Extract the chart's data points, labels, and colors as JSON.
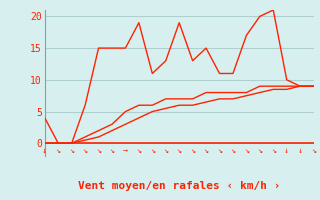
{
  "title": "",
  "xlabel": "Vent moyen/en rafales ‹ km/h ›",
  "bg_color": "#d7efef",
  "line_color": "#ff2200",
  "grid_color": "#b0d0d0",
  "axis_color": "#999999",
  "ylim": [
    0,
    21
  ],
  "yticks": [
    0,
    5,
    10,
    15,
    20
  ],
  "n_points": 21,
  "line1_y": [
    4,
    0,
    0,
    6,
    15,
    15,
    15,
    19,
    11,
    13,
    19,
    13,
    15,
    11,
    11,
    17,
    20,
    21,
    10,
    9,
    9
  ],
  "line2_y": [
    0,
    0,
    0,
    1,
    2,
    3,
    5,
    6,
    6,
    7,
    7,
    7,
    8,
    8,
    8,
    8,
    9,
    9,
    9,
    9,
    9
  ],
  "line3_y": [
    0,
    0,
    0,
    0.5,
    1,
    2,
    3,
    4,
    5,
    5.5,
    6,
    6,
    6.5,
    7,
    7,
    7.5,
    8,
    8.5,
    8.5,
    9,
    9
  ],
  "wind_dirs": [
    "↓",
    "↘",
    "↘",
    "↘",
    "↘",
    "↘",
    "→",
    "↘",
    "↘",
    "↘",
    "↘",
    "↘",
    "↘",
    "↘",
    "↘",
    "↘",
    "↘",
    "↘",
    "↓",
    "↓",
    "↘"
  ],
  "arrow_fontsize": 6,
  "label_fontsize": 8,
  "tick_fontsize": 7
}
